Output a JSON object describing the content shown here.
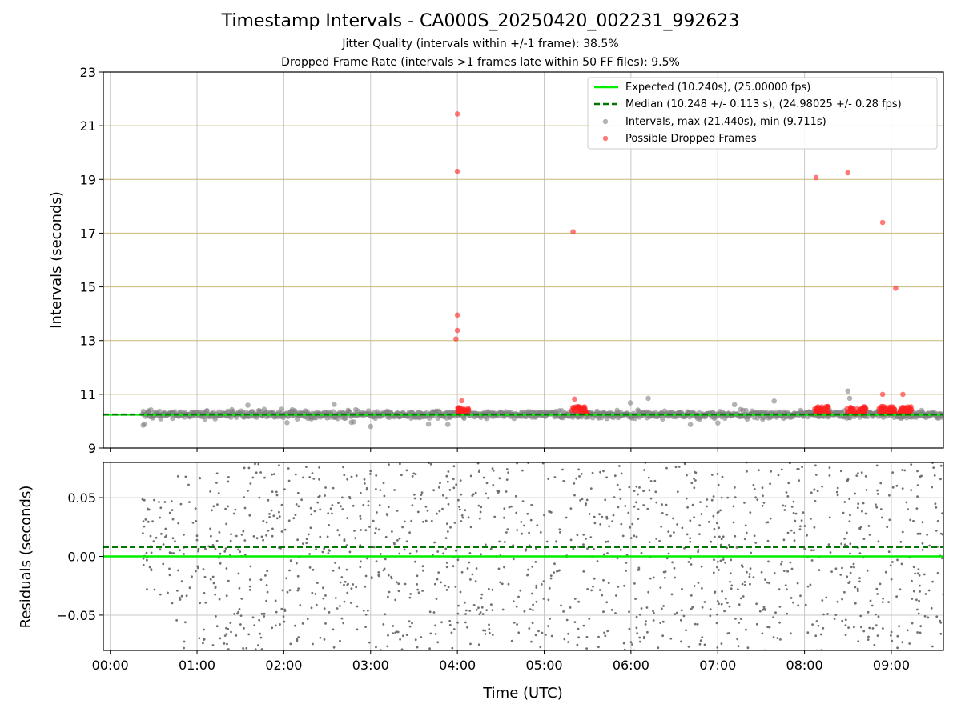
{
  "figure": {
    "title": "Timestamp Intervals - CA000S_20250420_002231_992623",
    "subtitle_1": "Jitter Quality (intervals within +/-1 frame): 38.5%",
    "subtitle_2": "Dropped Frame Rate (intervals >1 frames late within 50 FF files): 9.5%"
  },
  "colors": {
    "expected": "#00ee00",
    "median": "#007700",
    "intervals": "#808080",
    "dropped": "#ff2020",
    "hgrid": "#c8b87a",
    "vgrid": "#c8c8c8"
  },
  "chart_data": [
    {
      "type": "scatter",
      "ylabel": "Intervals (seconds)",
      "ylim": [
        9,
        23
      ],
      "xlim_hours": [
        -0.08,
        9.6
      ],
      "yticks": [
        9,
        11,
        13,
        15,
        17,
        19,
        21,
        23
      ],
      "grid": true,
      "legend_placement": "top-right",
      "legend": [
        "Expected (10.240s), (25.00000 fps)",
        "Median (10.248 +/- 0.113 s), (24.98025 +/- 0.28 fps)",
        "Intervals, max (21.440s), min (9.711s)",
        "Possible Dropped Frames"
      ],
      "expected_interval": 10.24,
      "median_interval": 10.248,
      "median_std": 0.113,
      "interval_min": 9.711,
      "interval_max": 21.44,
      "data_start_hour": 0.375,
      "data_end_hour": 9.6,
      "dropped_frames": [
        {
          "x": "04:00",
          "y": 21.44
        },
        {
          "x": "04:00",
          "y": 19.3
        },
        {
          "x": "04:00",
          "y": 13.95
        },
        {
          "x": "04:00",
          "y": 13.38
        },
        {
          "x": "03:59",
          "y": 13.06
        },
        {
          "x": "04:03",
          "y": 10.76
        },
        {
          "x": "05:20",
          "y": 17.05
        },
        {
          "x": "05:21",
          "y": 10.82
        },
        {
          "x": "08:08",
          "y": 19.07
        },
        {
          "x": "08:30",
          "y": 19.25
        },
        {
          "x": "08:54",
          "y": 17.4
        },
        {
          "x": "09:03",
          "y": 14.95
        },
        {
          "x": "08:54",
          "y": 11.0
        },
        {
          "x": "09:08",
          "y": 11.0
        }
      ],
      "dropped_clusters": [
        {
          "from": "04:00",
          "to": "04:08",
          "y_range": [
            10.28,
            10.55
          ]
        },
        {
          "from": "05:19",
          "to": "05:30",
          "y_range": [
            10.28,
            10.55
          ]
        },
        {
          "from": "08:07",
          "to": "08:17",
          "y_range": [
            10.28,
            10.55
          ]
        },
        {
          "from": "08:29",
          "to": "08:43",
          "y_range": [
            10.28,
            10.55
          ]
        },
        {
          "from": "08:51",
          "to": "09:03",
          "y_range": [
            10.28,
            10.55
          ]
        },
        {
          "from": "09:05",
          "to": "09:14",
          "y_range": [
            10.28,
            10.55
          ]
        }
      ]
    },
    {
      "type": "scatter",
      "xlabel": "Time (UTC)",
      "ylabel": "Residuals (seconds)",
      "ylim": [
        -0.08,
        0.08
      ],
      "yticks": [
        0.05,
        0.0,
        -0.05
      ],
      "ytick_labels": [
        "0.05",
        "0.00",
        "−0.05"
      ],
      "xticks": [
        "00:00",
        "01:00",
        "02:00",
        "03:00",
        "04:00",
        "05:00",
        "06:00",
        "07:00",
        "08:00",
        "09:00"
      ],
      "grid": true,
      "expected_residual": 0.0,
      "median_residual": 0.008,
      "residual_spread": "uniform scatter between -0.08 and 0.08 from 00:22 to 09:36"
    }
  ]
}
